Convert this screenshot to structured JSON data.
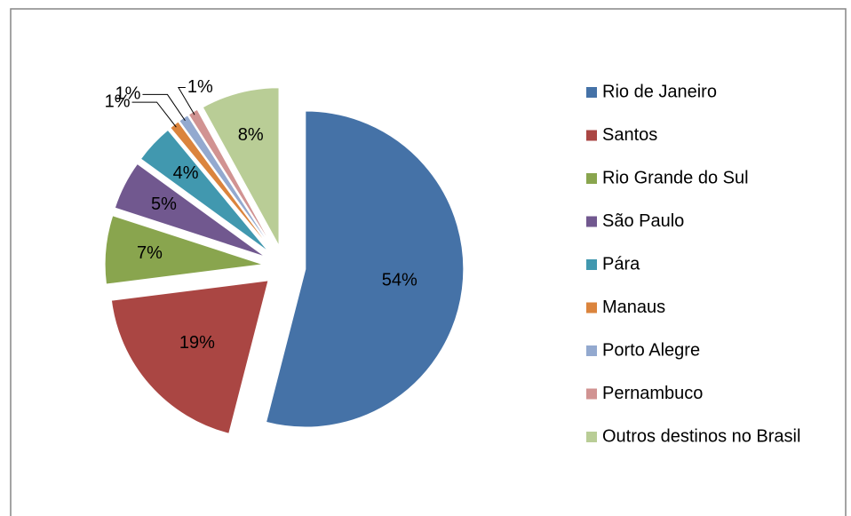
{
  "chart_data": {
    "type": "pie",
    "categories": [
      "Rio de Janeiro",
      "Santos",
      "Rio Grande do Sul",
      "São Paulo",
      "Pára",
      "Manaus",
      "Porto Alegre",
      "Pernambuco",
      "Outros destinos no Brasil"
    ],
    "values": [
      54,
      19,
      7,
      5,
      4,
      1,
      1,
      1,
      8
    ],
    "value_labels": [
      "54%",
      "19%",
      "7%",
      "5%",
      "4%",
      "1%",
      "1%",
      "1%",
      "8%"
    ],
    "colors": [
      "#4572a7",
      "#aa4643",
      "#89a54e",
      "#71588f",
      "#4198af",
      "#db843d",
      "#93a9cf",
      "#d19392",
      "#b9cd96"
    ],
    "exploded": true,
    "legend": "right"
  }
}
